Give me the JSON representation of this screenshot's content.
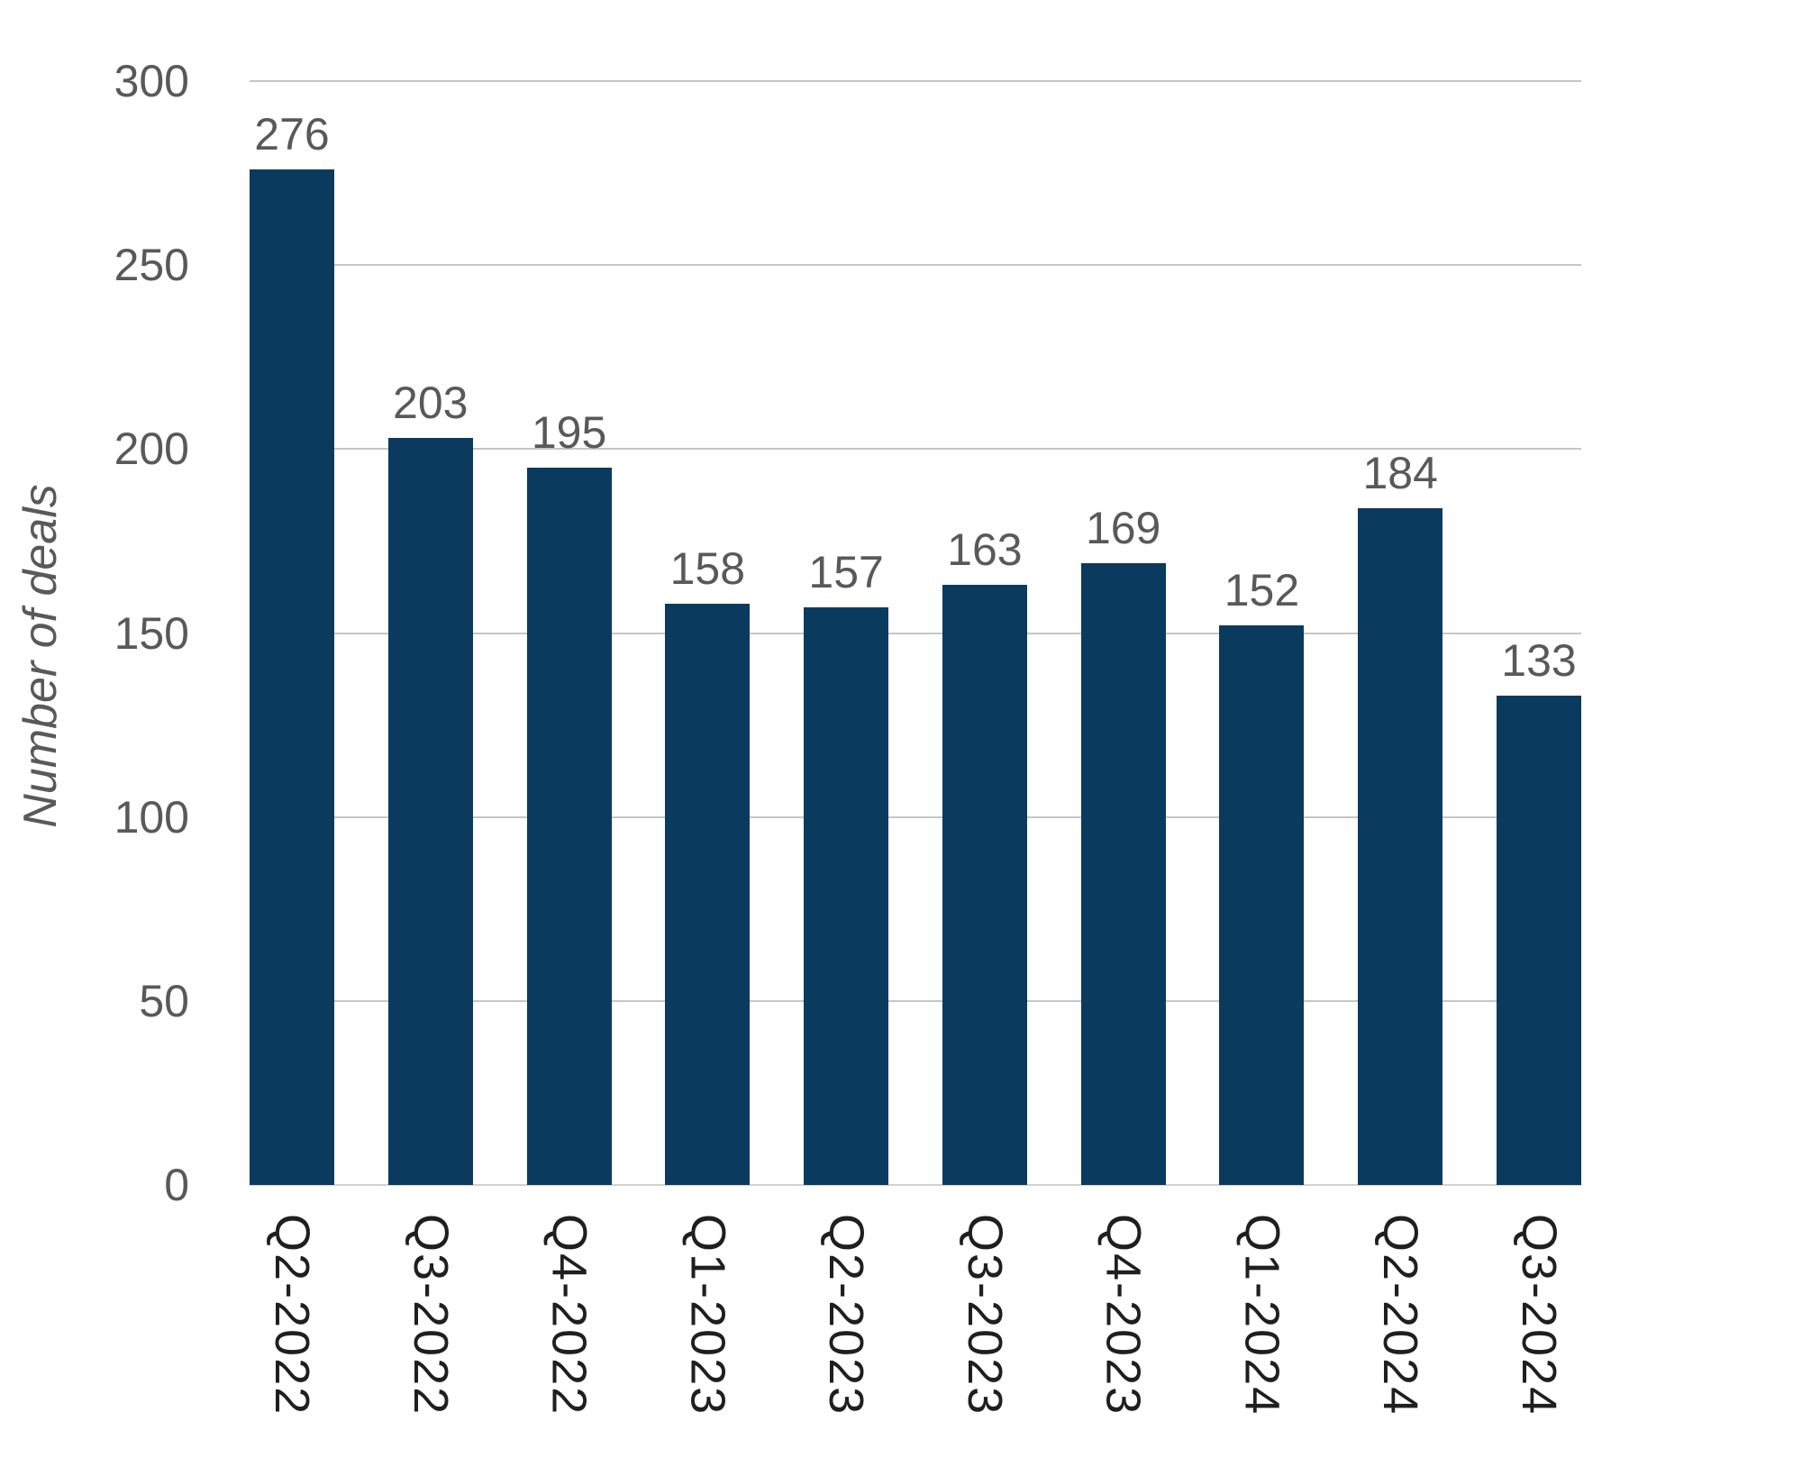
{
  "chart_data": {
    "type": "bar",
    "title": "",
    "xlabel": "",
    "ylabel": "Number of deals",
    "categories": [
      "Q2-2022",
      "Q3-2022",
      "Q4-2022",
      "Q1-2023",
      "Q2-2023",
      "Q3-2023",
      "Q4-2023",
      "Q1-2024",
      "Q2-2024",
      "Q3-2024"
    ],
    "values": [
      276,
      203,
      195,
      158,
      157,
      163,
      169,
      152,
      184,
      133
    ],
    "ylim": [
      0,
      300
    ],
    "yticks": [
      0,
      50,
      100,
      150,
      200,
      250,
      300
    ],
    "grid": "horizontal",
    "legend": "none",
    "value_labels_shown": true,
    "x_label_rotation_deg": 90,
    "colors": {
      "bar": "#0b3a5f",
      "gridline": "#c6c6c6",
      "baseline": "#d2d2d2",
      "y_tick_label": "#595959",
      "value_label": "#595959",
      "x_tick_label": "#1f1f1f",
      "y_axis_title": "#595959",
      "background": "#ffffff"
    }
  }
}
